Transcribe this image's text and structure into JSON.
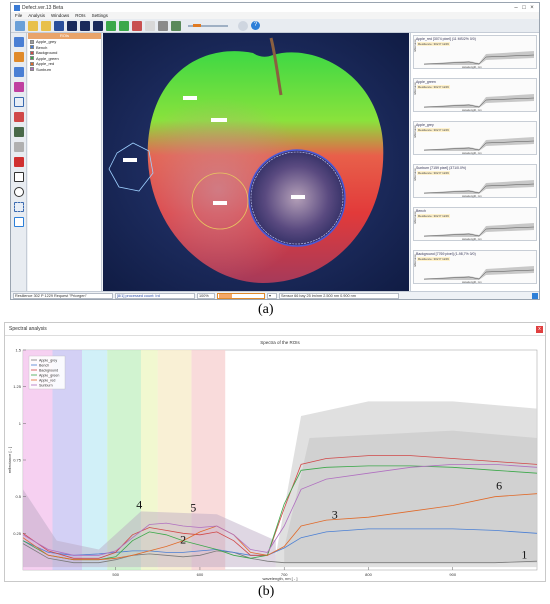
{
  "panel_a": {
    "window_title": "Defect.ver.13 Beta",
    "menu": [
      "File",
      "Analysis",
      "Windows",
      "ROIs",
      "Settings"
    ],
    "roi_header": "ROIs",
    "roi_list": [
      {
        "label": "Apple_grey",
        "color": "#9e9e9e"
      },
      {
        "label": "Bench",
        "color": "#4a7fd4"
      },
      {
        "label": "Background",
        "color": "#d04848"
      },
      {
        "label": "Apple_green",
        "color": "#3ca84a"
      },
      {
        "label": "Apple_red",
        "color": "#e06a2a"
      },
      {
        "label": "Sunburn",
        "color": "#b070c0"
      }
    ],
    "spectra_titles": [
      "Apple_red [3074 pixel] (11 MS/2% 0/0)",
      "Apple_green",
      "Apple_grey",
      "Sunburn [7159 pixel] (371/0.0%)",
      "Bench",
      "Background [7769 pixel] (1-98,7% 0/0)"
    ],
    "spectra_tag": "Resilience: 302 P 1229",
    "spectra_xlabel": "wavelength, nm",
    "spectra_ylabel": "reflectance",
    "status": {
      "field1": "Resilience 302 P 1229 Request \"Pricegen\"",
      "field2": "[8/1] processed count: Ird",
      "field3": "100%",
      "field4": "Sensor 66 bay 25 lm/nm 2.500 nm 0.900 nm"
    }
  },
  "panel_b": {
    "window_title": "Spectral analysis",
    "plot_title": "Spectra of the ROIs",
    "close_label": "x"
  },
  "captions": {
    "a": "(a)",
    "b": "(b)"
  },
  "chart_data": {
    "type": "line",
    "title": "Spectra of the ROIs",
    "xlabel": "wavelength, nm [ - ]",
    "ylabel": "reflectance [ - ]",
    "xlim": [
      390,
      1000
    ],
    "ylim": [
      0,
      1.5
    ],
    "x_ticks": [
      500,
      600,
      700,
      800,
      900
    ],
    "y_ticks": [
      0.25,
      0.5,
      0.75,
      1,
      1.25,
      1.5
    ],
    "legend": {
      "position": "top-left",
      "entries": [
        "Apple_grey",
        "Bench",
        "Background",
        "Apple_green",
        "Apple_red",
        "Sunburn"
      ]
    },
    "bands": [
      {
        "x0": 390,
        "x1": 425,
        "color": "#f4c4ee"
      },
      {
        "x0": 425,
        "x1": 460,
        "color": "#c8c4f2"
      },
      {
        "x0": 460,
        "x1": 490,
        "color": "#c6ecf6"
      },
      {
        "x0": 490,
        "x1": 530,
        "color": "#c6f0c4"
      },
      {
        "x0": 530,
        "x1": 550,
        "color": "#eef6c4"
      },
      {
        "x0": 550,
        "x1": 590,
        "color": "#f8eccb"
      },
      {
        "x0": 590,
        "x1": 630,
        "color": "#f8d2d2"
      }
    ],
    "curve_labels": [
      {
        "text": "1",
        "x": 985,
        "y": 0.08
      },
      {
        "text": "2",
        "x": 580,
        "y": 0.18
      },
      {
        "text": "3",
        "x": 760,
        "y": 0.35
      },
      {
        "text": "4",
        "x": 528,
        "y": 0.42
      },
      {
        "text": "5",
        "x": 592,
        "y": 0.4
      },
      {
        "text": "6",
        "x": 955,
        "y": 0.55
      }
    ],
    "series": [
      {
        "name": "Apple_grey",
        "color": "#7a7a7a",
        "x": [
          390,
          420,
          450,
          480,
          500,
          520,
          540,
          560,
          580,
          600,
          620,
          640,
          660,
          680,
          700,
          720,
          750,
          800,
          850,
          900,
          950,
          1000
        ],
        "y": [
          0.18,
          0.08,
          0.05,
          0.05,
          0.07,
          0.1,
          0.11,
          0.1,
          0.09,
          0.1,
          0.13,
          0.12,
          0.08,
          0.06,
          0.05,
          0.05,
          0.05,
          0.05,
          0.05,
          0.05,
          0.05,
          0.06
        ]
      },
      {
        "name": "Bench",
        "color": "#4a7fd4",
        "x": [
          390,
          420,
          450,
          480,
          500,
          520,
          540,
          560,
          580,
          600,
          620,
          640,
          660,
          680,
          700,
          720,
          750,
          800,
          850,
          900,
          950,
          1000
        ],
        "y": [
          0.2,
          0.12,
          0.1,
          0.11,
          0.12,
          0.13,
          0.13,
          0.12,
          0.12,
          0.13,
          0.14,
          0.12,
          0.1,
          0.1,
          0.15,
          0.22,
          0.26,
          0.28,
          0.28,
          0.28,
          0.27,
          0.25
        ]
      },
      {
        "name": "Background",
        "color": "#d04848",
        "x": [
          390,
          420,
          450,
          480,
          500,
          520,
          540,
          560,
          580,
          600,
          620,
          640,
          660,
          680,
          700,
          720,
          750,
          800,
          850,
          900,
          950,
          1000
        ],
        "y": [
          0.25,
          0.13,
          0.08,
          0.08,
          0.12,
          0.24,
          0.29,
          0.27,
          0.25,
          0.24,
          0.26,
          0.2,
          0.1,
          0.1,
          0.42,
          0.72,
          0.76,
          0.78,
          0.78,
          0.76,
          0.74,
          0.72
        ]
      },
      {
        "name": "Apple_green",
        "color": "#3ca84a",
        "x": [
          390,
          420,
          450,
          480,
          500,
          520,
          540,
          560,
          580,
          600,
          620,
          640,
          660,
          680,
          700,
          720,
          750,
          800,
          850,
          900,
          950,
          1000
        ],
        "y": [
          0.2,
          0.1,
          0.07,
          0.07,
          0.09,
          0.2,
          0.26,
          0.24,
          0.2,
          0.17,
          0.14,
          0.1,
          0.08,
          0.1,
          0.45,
          0.68,
          0.7,
          0.71,
          0.71,
          0.7,
          0.68,
          0.66
        ]
      },
      {
        "name": "Apple_red",
        "color": "#e06a2a",
        "x": [
          390,
          420,
          450,
          480,
          500,
          520,
          540,
          560,
          580,
          600,
          620,
          640,
          660,
          680,
          700,
          720,
          750,
          800,
          850,
          900,
          950,
          1000
        ],
        "y": [
          0.22,
          0.1,
          0.07,
          0.07,
          0.08,
          0.1,
          0.13,
          0.16,
          0.2,
          0.26,
          0.3,
          0.24,
          0.12,
          0.1,
          0.16,
          0.3,
          0.34,
          0.36,
          0.4,
          0.44,
          0.5,
          0.52
        ]
      },
      {
        "name": "Sunburn",
        "color": "#b070c0",
        "x": [
          390,
          420,
          450,
          480,
          500,
          520,
          540,
          560,
          580,
          600,
          620,
          640,
          660,
          680,
          700,
          720,
          750,
          800,
          850,
          900,
          950,
          1000
        ],
        "y": [
          0.24,
          0.14,
          0.1,
          0.1,
          0.13,
          0.22,
          0.31,
          0.32,
          0.3,
          0.29,
          0.3,
          0.24,
          0.14,
          0.12,
          0.3,
          0.55,
          0.62,
          0.66,
          0.7,
          0.72,
          0.72,
          0.7
        ]
      }
    ]
  }
}
